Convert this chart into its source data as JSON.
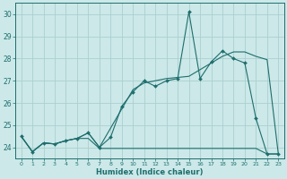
{
  "title": "",
  "xlabel": "Humidex (Indice chaleur)",
  "bg_color": "#cce8e8",
  "grid_color": "#aacfcf",
  "line_color": "#1e6e6e",
  "xlim": [
    -0.5,
    23.5
  ],
  "ylim": [
    23.5,
    30.5
  ],
  "yticks": [
    24,
    25,
    26,
    27,
    28,
    29,
    30
  ],
  "xticks": [
    0,
    1,
    2,
    3,
    4,
    5,
    6,
    7,
    8,
    9,
    10,
    11,
    12,
    13,
    14,
    15,
    16,
    17,
    18,
    19,
    20,
    21,
    22,
    23
  ],
  "line1_x": [
    0,
    1,
    2,
    3,
    4,
    5,
    6,
    7,
    8,
    9,
    10,
    11,
    12,
    13,
    14,
    15,
    16,
    17,
    18,
    19,
    20,
    21,
    22,
    23
  ],
  "line1_y": [
    24.5,
    23.8,
    24.2,
    24.15,
    24.3,
    24.4,
    24.65,
    24.0,
    24.45,
    25.85,
    26.5,
    27.0,
    26.75,
    27.0,
    27.1,
    30.1,
    27.1,
    27.85,
    28.35,
    28.0,
    27.8,
    25.3,
    23.7,
    23.7
  ],
  "line2_x": [
    0,
    1,
    2,
    3,
    4,
    5,
    6,
    7,
    8,
    9,
    10,
    11,
    12,
    13,
    14,
    15,
    16,
    17,
    18,
    19,
    20,
    21,
    22,
    23
  ],
  "line2_y": [
    24.5,
    23.8,
    24.2,
    24.15,
    24.3,
    24.4,
    24.4,
    23.95,
    23.95,
    23.95,
    23.95,
    23.95,
    23.95,
    23.95,
    23.95,
    23.95,
    23.95,
    23.95,
    23.95,
    23.95,
    23.95,
    23.95,
    23.7,
    23.7
  ],
  "line3_x": [
    0,
    1,
    2,
    3,
    4,
    5,
    6,
    7,
    10,
    11,
    12,
    13,
    14,
    15,
    16,
    17,
    18,
    19,
    20,
    21,
    22,
    23
  ],
  "line3_y": [
    24.5,
    23.8,
    24.2,
    24.15,
    24.3,
    24.4,
    24.65,
    24.0,
    26.6,
    26.9,
    27.0,
    27.1,
    27.15,
    27.2,
    27.5,
    27.8,
    28.1,
    28.3,
    28.3,
    28.1,
    27.95,
    23.7
  ]
}
